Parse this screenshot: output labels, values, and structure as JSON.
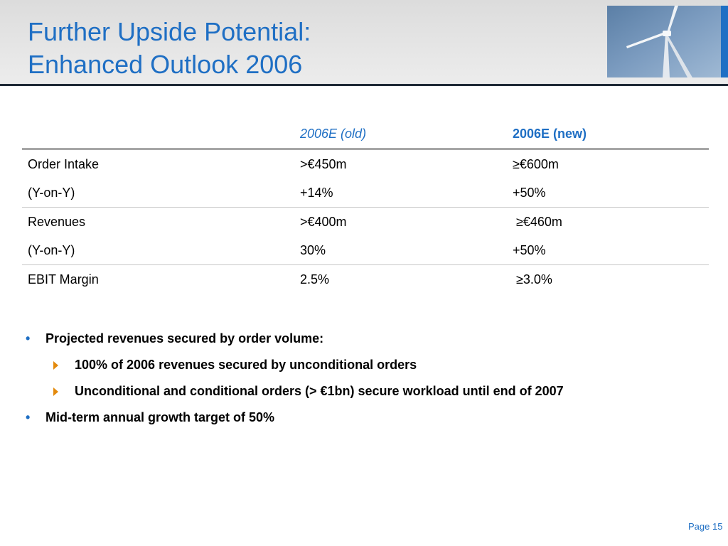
{
  "title": {
    "line1": "Further Upside Potential:",
    "line2": "Enhanced Outlook 2006"
  },
  "table": {
    "headers": [
      "",
      "2006E (old)",
      "2006E (new)"
    ],
    "rows": [
      [
        "Order Intake",
        ">€450m",
        "≥€600m"
      ],
      [
        "(Y-on-Y)",
        "+14%",
        "+50%"
      ],
      [
        "Revenues",
        ">€400m",
        " ≥€460m"
      ],
      [
        "(Y-on-Y)",
        "30%",
        "+50%"
      ],
      [
        "EBIT Margin",
        "2.5%",
        " ≥3.0%"
      ]
    ]
  },
  "bullets": {
    "b1": "Projected revenues secured by order volume:",
    "b1_sub1": "100% of 2006 revenues secured by unconditional orders",
    "b1_sub2": "Unconditional and conditional orders (> €1bn) secure workload until end of 2007",
    "b2": "Mid-term annual growth target of 50%"
  },
  "page_number": "Page 15",
  "colors": {
    "accent": "#1f6fc4",
    "arrow": "#e38a0c",
    "rule": "#1f2a36"
  },
  "icons": {
    "bullet": "•",
    "sub_bullet": "right-triangle-icon",
    "header_image": "wind-turbine-photo"
  }
}
